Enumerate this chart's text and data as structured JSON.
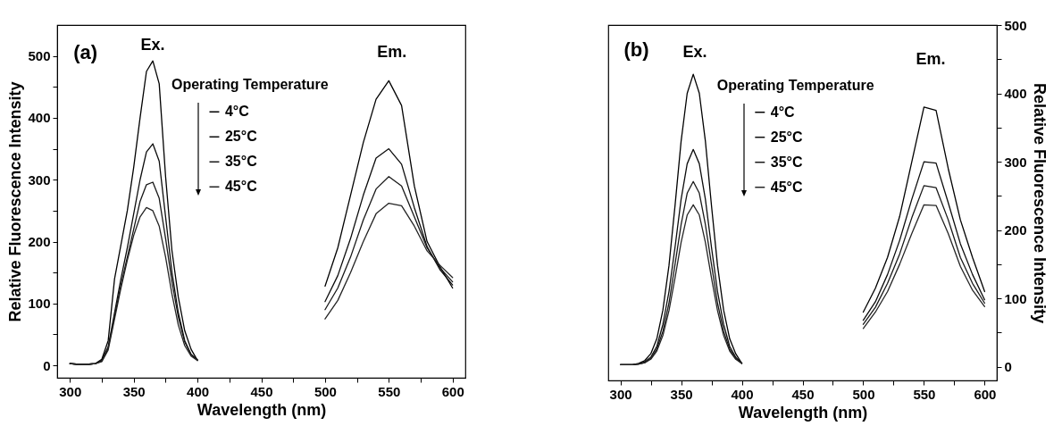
{
  "chart_data": [
    {
      "type": "line",
      "annotations": [
        "(a)",
        "Ex.",
        "Em."
      ],
      "xlabel": "Wavelength (nm)",
      "ylabel": "Relative Fluorescence Intensity",
      "legend_title": "Operating Temperature",
      "legend": "top",
      "xlim": [
        290,
        610
      ],
      "ylim": [
        -20,
        550
      ],
      "xticks": [
        300,
        {
          "value": 325,
          "label": null
        },
        350,
        {
          "value": 375,
          "label": null
        },
        400,
        {
          "value": 425,
          "label": null
        },
        450,
        {
          "value": 475,
          "label": null
        },
        500,
        {
          "value": 525,
          "label": null
        },
        550,
        {
          "value": 575,
          "label": null
        },
        600
      ],
      "yticks": [
        0,
        {
          "value": 50,
          "label": null
        },
        100,
        {
          "value": 150,
          "label": null
        },
        200,
        {
          "value": 250,
          "label": null
        },
        300,
        {
          "value": 350,
          "label": null
        },
        400,
        {
          "value": 450,
          "label": null
        },
        500
      ],
      "x": [
        300,
        305,
        310,
        315,
        320,
        325,
        330,
        335,
        340,
        345,
        350,
        355,
        360,
        365,
        370,
        375,
        380,
        385,
        390,
        395,
        400,
        450,
        500,
        510,
        520,
        530,
        540,
        550,
        560,
        570,
        580,
        590,
        600
      ],
      "series": [
        {
          "name": "4°C",
          "color": "#000000",
          "values": [
            3,
            2,
            2,
            2,
            3,
            10,
            40,
            140,
            195,
            250,
            320,
            400,
            475,
            492,
            455,
            305,
            185,
            110,
            56,
            26,
            8,
            null,
            128,
            190,
            275,
            360,
            430,
            460,
            420,
            290,
            200,
            160,
            125
          ]
        },
        {
          "name": "25°C",
          "color": "#0c0c0c",
          "values": [
            3,
            2,
            2,
            2,
            3,
            8,
            30,
            85,
            140,
            190,
            245,
            300,
            345,
            358,
            330,
            240,
            150,
            85,
            40,
            18,
            9,
            null,
            103,
            145,
            205,
            275,
            335,
            350,
            325,
            255,
            192,
            155,
            130
          ]
        },
        {
          "name": "35°C",
          "color": "#181818",
          "values": [
            3,
            2,
            2,
            2,
            3,
            7,
            28,
            80,
            130,
            175,
            220,
            265,
            292,
            296,
            270,
            205,
            135,
            78,
            38,
            17,
            9,
            null,
            90,
            125,
            175,
            235,
            285,
            305,
            290,
            240,
            190,
            158,
            135
          ]
        },
        {
          "name": "45°C",
          "color": "#242424",
          "values": [
            3,
            2,
            2,
            2,
            3,
            6,
            25,
            75,
            125,
            170,
            210,
            240,
            255,
            250,
            225,
            175,
            115,
            65,
            32,
            15,
            8,
            null,
            75,
            105,
            150,
            200,
            245,
            262,
            258,
            225,
            185,
            162,
            142
          ]
        }
      ]
    },
    {
      "type": "line",
      "annotations": [
        "(b)",
        "Ex.",
        "Em."
      ],
      "xlabel": "Wavelength (nm)",
      "y2label": "Relative Fluorescence Intensity",
      "legend_title": "Operating Temperature",
      "legend": "top",
      "xlim": [
        290,
        610
      ],
      "y2lim": [
        -20,
        500
      ],
      "xticks": [
        300,
        {
          "value": 325,
          "label": null
        },
        350,
        {
          "value": 375,
          "label": null
        },
        400,
        {
          "value": 425,
          "label": null
        },
        450,
        {
          "value": 475,
          "label": null
        },
        500,
        {
          "value": 525,
          "label": null
        },
        550,
        {
          "value": 575,
          "label": null
        },
        600
      ],
      "y2ticks": [
        0,
        {
          "value": 50,
          "label": null
        },
        100,
        {
          "value": 150,
          "label": null
        },
        200,
        {
          "value": 250,
          "label": null
        },
        300,
        {
          "value": 350,
          "label": null
        },
        400,
        {
          "value": 450,
          "label": null
        },
        500
      ],
      "x": [
        300,
        305,
        310,
        315,
        320,
        325,
        330,
        335,
        340,
        345,
        350,
        355,
        360,
        365,
        370,
        375,
        380,
        385,
        390,
        395,
        400,
        450,
        500,
        510,
        520,
        530,
        540,
        550,
        560,
        570,
        580,
        590,
        600
      ],
      "series": [
        {
          "name": "4°C",
          "color": "#000000",
          "axis": "y2",
          "values": [
            3,
            3,
            3,
            5,
            9,
            19,
            41,
            83,
            148,
            236,
            330,
            400,
            428,
            400,
            330,
            236,
            148,
            83,
            41,
            19,
            5,
            null,
            80,
            115,
            160,
            220,
            300,
            380,
            375,
            290,
            215,
            160,
            110
          ]
        },
        {
          "name": "25°C",
          "color": "#0c0c0c",
          "axis": "y2",
          "values": [
            3,
            3,
            3,
            4,
            7,
            14,
            30,
            62,
            110,
            175,
            245,
            297,
            318,
            297,
            245,
            175,
            110,
            62,
            30,
            14,
            5,
            null,
            68,
            95,
            135,
            185,
            245,
            300,
            298,
            240,
            180,
            135,
            98
          ]
        },
        {
          "name": "35°C",
          "color": "#181818",
          "axis": "y2",
          "values": [
            3,
            3,
            3,
            4,
            6,
            12,
            26,
            52,
            93,
            150,
            208,
            254,
            271,
            254,
            208,
            150,
            93,
            52,
            26,
            12,
            5,
            null,
            62,
            87,
            122,
            165,
            218,
            265,
            262,
            215,
            160,
            122,
            93
          ]
        },
        {
          "name": "45°C",
          "color": "#242424",
          "axis": "y2",
          "values": [
            3,
            3,
            3,
            4,
            6,
            11,
            23,
            46,
            82,
            130,
            182,
            222,
            237,
            222,
            182,
            130,
            82,
            46,
            23,
            11,
            5,
            null,
            56,
            80,
            110,
            150,
            195,
            237,
            236,
            195,
            147,
            112,
            88
          ]
        }
      ]
    }
  ]
}
